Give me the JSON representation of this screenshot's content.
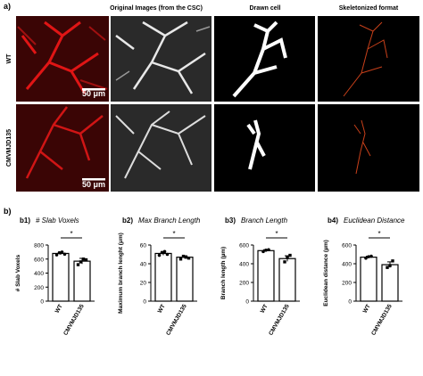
{
  "panel_a": {
    "label": "a)",
    "columns": [
      "Original Images (from the CSC)",
      "Drawn cell",
      "Skeletonized format"
    ],
    "rows": [
      "WT",
      "CMVMJD135"
    ],
    "scale_bar": "50 μm"
  },
  "panel_b_label": "b)",
  "chart_data": [
    {
      "type": "bar",
      "label": "b1)",
      "title": "# Slab Voxels",
      "ylabel": "# Slab Voxels",
      "categories": [
        "WT",
        "CMVMJD135"
      ],
      "values": [
        680,
        570
      ],
      "errors": [
        20,
        40
      ],
      "points": [
        [
          660,
          690,
          700,
          670
        ],
        [
          520,
          560,
          600,
          590
        ]
      ],
      "ylim": [
        0,
        800
      ],
      "yticks": [
        0,
        200,
        400,
        600,
        800
      ],
      "significance": "*"
    },
    {
      "type": "bar",
      "label": "b2)",
      "title": "Max Branch Length",
      "ylabel": "Maximum branch lenght (μm)",
      "categories": [
        "WT",
        "CMVMJD135"
      ],
      "values": [
        51,
        47
      ],
      "errors": [
        2,
        1.5
      ],
      "points": [
        [
          49,
          52,
          53,
          50
        ],
        [
          45,
          48,
          47,
          46
        ]
      ],
      "ylim": [
        0,
        60
      ],
      "yticks": [
        0,
        20,
        40,
        60
      ],
      "significance": "*"
    },
    {
      "type": "bar",
      "label": "b3)",
      "title": "Branch Length",
      "ylabel": "Branch length (µm)",
      "categories": [
        "WT",
        "CMVMJD135"
      ],
      "values": [
        540,
        455
      ],
      "errors": [
        10,
        30
      ],
      "points": [
        [
          530,
          545,
          550
        ],
        [
          420,
          470,
          490
        ]
      ],
      "ylim": [
        0,
        600
      ],
      "yticks": [
        0,
        200,
        400,
        600
      ],
      "significance": "*"
    },
    {
      "type": "bar",
      "label": "b4)",
      "title": "Euclidean Distance",
      "ylabel": "Euclidean distance (µm)",
      "categories": [
        "WT",
        "CMVMJD135"
      ],
      "values": [
        470,
        390
      ],
      "errors": [
        10,
        30
      ],
      "points": [
        [
          460,
          475,
          480
        ],
        [
          360,
          380,
          430
        ]
      ],
      "ylim": [
        0,
        600
      ],
      "yticks": [
        0,
        200,
        400,
        600
      ],
      "significance": "*"
    }
  ]
}
